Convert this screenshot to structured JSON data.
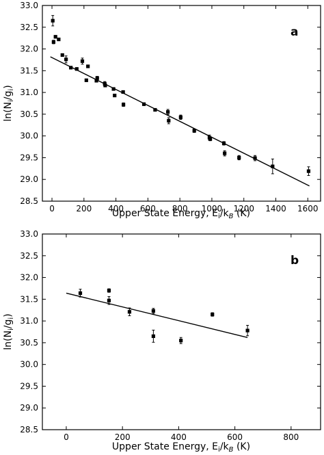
{
  "chart_data": [
    {
      "type": "scatter",
      "panel_label": "a",
      "xlabel": "Upper State Energy, E",
      "xlabel_sub": "i",
      "xlabel_mid": "/k",
      "xlabel_sub2": "B",
      "xlabel_unit": " (K)",
      "ylabel": "ln(N",
      "ylabel_sub": "i",
      "ylabel_mid": "/g",
      "ylabel_sub2": "i",
      "ylabel_end": ")",
      "xlim": [
        -60,
        1680
      ],
      "ylim": [
        28.5,
        33.0
      ],
      "xticks": [
        0,
        200,
        400,
        600,
        800,
        1000,
        1200,
        1400,
        1600
      ],
      "yticks": [
        28.5,
        29.0,
        29.5,
        30.0,
        30.5,
        31.0,
        31.5,
        32.0,
        32.5,
        33.0
      ],
      "grid": false,
      "fit_line": {
        "x": [
          -10,
          1610
        ],
        "y": [
          31.82,
          28.85
        ]
      },
      "points": [
        {
          "x": 5,
          "y": 32.65,
          "err": 0.12
        },
        {
          "x": 10,
          "y": 32.16,
          "err": 0.04
        },
        {
          "x": 22,
          "y": 32.28,
          "err": 0.03
        },
        {
          "x": 42,
          "y": 32.22,
          "err": 0.03
        },
        {
          "x": 65,
          "y": 31.86,
          "err": 0.03
        },
        {
          "x": 88,
          "y": 31.76,
          "err": 0.08
        },
        {
          "x": 118,
          "y": 31.57,
          "err": 0.03
        },
        {
          "x": 155,
          "y": 31.54,
          "err": 0.03
        },
        {
          "x": 190,
          "y": 31.72,
          "err": 0.07
        },
        {
          "x": 215,
          "y": 31.28,
          "err": 0.03
        },
        {
          "x": 225,
          "y": 31.6,
          "err": 0.03
        },
        {
          "x": 278,
          "y": 31.27,
          "err": 0.03
        },
        {
          "x": 283,
          "y": 31.33,
          "err": 0.04
        },
        {
          "x": 330,
          "y": 31.2,
          "err": 0.05
        },
        {
          "x": 333,
          "y": 31.16,
          "err": 0.03
        },
        {
          "x": 385,
          "y": 31.08,
          "err": 0.03
        },
        {
          "x": 392,
          "y": 30.93,
          "err": 0.03
        },
        {
          "x": 445,
          "y": 31.01,
          "err": 0.03
        },
        {
          "x": 447,
          "y": 30.72,
          "err": 0.04
        },
        {
          "x": 575,
          "y": 30.73,
          "err": 0.03
        },
        {
          "x": 645,
          "y": 30.6,
          "err": 0.03
        },
        {
          "x": 725,
          "y": 30.55,
          "err": 0.06
        },
        {
          "x": 730,
          "y": 30.35,
          "err": 0.07
        },
        {
          "x": 805,
          "y": 30.43,
          "err": 0.05
        },
        {
          "x": 890,
          "y": 30.12,
          "err": 0.04
        },
        {
          "x": 985,
          "y": 29.96,
          "err": 0.06
        },
        {
          "x": 990,
          "y": 29.93,
          "err": 0.04
        },
        {
          "x": 1075,
          "y": 29.83,
          "err": 0.04
        },
        {
          "x": 1080,
          "y": 29.6,
          "err": 0.06
        },
        {
          "x": 1170,
          "y": 29.5,
          "err": 0.05
        },
        {
          "x": 1270,
          "y": 29.49,
          "err": 0.06
        },
        {
          "x": 1380,
          "y": 29.3,
          "err": 0.17
        },
        {
          "x": 1605,
          "y": 29.19,
          "err": 0.1
        }
      ]
    },
    {
      "type": "scatter",
      "panel_label": "b",
      "xlabel": "Upper State Energy, E",
      "xlabel_sub": "i",
      "xlabel_mid": "/k",
      "xlabel_sub2": "B",
      "xlabel_unit": " (K)",
      "ylabel": "ln(N",
      "ylabel_sub": "i",
      "ylabel_mid": "/g",
      "ylabel_sub2": "i",
      "ylabel_end": ")",
      "xlim": [
        -85,
        905
      ],
      "ylim": [
        28.5,
        33.0
      ],
      "xticks": [
        0,
        200,
        400,
        600,
        800
      ],
      "yticks": [
        28.5,
        29.0,
        29.5,
        30.0,
        30.5,
        31.0,
        31.5,
        32.0,
        32.5,
        33.0
      ],
      "grid": false,
      "fit_line": {
        "x": [
          0,
          645
        ],
        "y": [
          31.64,
          30.62
        ]
      },
      "points": [
        {
          "x": 50,
          "y": 31.64,
          "err": 0.09
        },
        {
          "x": 152,
          "y": 31.7,
          "err": 0.04
        },
        {
          "x": 152,
          "y": 31.47,
          "err": 0.09
        },
        {
          "x": 225,
          "y": 31.21,
          "err": 0.09
        },
        {
          "x": 310,
          "y": 31.23,
          "err": 0.06
        },
        {
          "x": 310,
          "y": 30.65,
          "err": 0.14
        },
        {
          "x": 408,
          "y": 30.55,
          "err": 0.07
        },
        {
          "x": 520,
          "y": 31.15,
          "err": 0.04
        },
        {
          "x": 645,
          "y": 30.78,
          "err": 0.12
        }
      ]
    }
  ]
}
